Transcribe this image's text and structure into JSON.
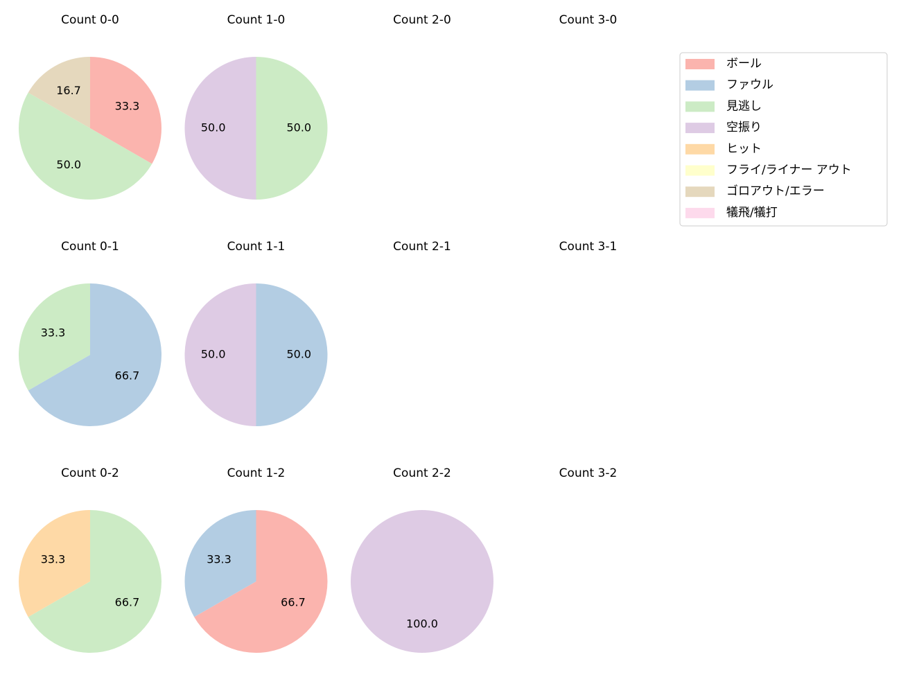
{
  "chart_data": [
    {
      "type": "pie",
      "title": "Count 0-0",
      "categories": [
        "ボール",
        "見逃し",
        "ゴロアウト/エラー"
      ],
      "values": [
        33.3,
        50,
        16.7
      ],
      "value_labels": [
        "33.3",
        "50.0",
        "16.7"
      ],
      "colors": [
        "#fbb4ae",
        "#ccebc5",
        "#e5d8bd"
      ]
    },
    {
      "type": "pie",
      "title": "Count 1-0",
      "categories": [
        "見逃し",
        "空振り"
      ],
      "values": [
        50,
        50
      ],
      "value_labels": [
        "50.0",
        "50.0"
      ],
      "colors": [
        "#ccebc5",
        "#decbe4"
      ]
    },
    {
      "type": "pie",
      "title": "Count 2-0"
    },
    {
      "type": "pie",
      "title": "Count 3-0"
    },
    {
      "type": "pie",
      "title": "Count 0-1",
      "categories": [
        "ファウル",
        "見逃し"
      ],
      "values": [
        66.7,
        33.3
      ],
      "value_labels": [
        "66.7",
        "33.3"
      ],
      "colors": [
        "#b3cde3",
        "#ccebc5"
      ]
    },
    {
      "type": "pie",
      "title": "Count 1-1",
      "categories": [
        "ファウル",
        "空振り"
      ],
      "values": [
        50,
        50
      ],
      "value_labels": [
        "50.0",
        "50.0"
      ],
      "colors": [
        "#b3cde3",
        "#decbe4"
      ]
    },
    {
      "type": "pie",
      "title": "Count 2-1"
    },
    {
      "type": "pie",
      "title": "Count 3-1"
    },
    {
      "type": "pie",
      "title": "Count 0-2",
      "categories": [
        "見逃し",
        "ヒット"
      ],
      "values": [
        66.7,
        33.3
      ],
      "value_labels": [
        "66.7",
        "33.3"
      ],
      "colors": [
        "#ccebc5",
        "#fed9a6"
      ]
    },
    {
      "type": "pie",
      "title": "Count 1-2",
      "categories": [
        "ボール",
        "ファウル"
      ],
      "values": [
        66.7,
        33.3
      ],
      "value_labels": [
        "66.7",
        "33.3"
      ],
      "colors": [
        "#fbb4ae",
        "#b3cde3"
      ]
    },
    {
      "type": "pie",
      "title": "Count 2-2",
      "categories": [
        "空振り"
      ],
      "values": [
        100
      ],
      "value_labels": [
        "100.0"
      ],
      "colors": [
        "#decbe4"
      ]
    },
    {
      "type": "pie",
      "title": "Count 3-2"
    }
  ],
  "legend": {
    "labels": [
      "ボール",
      "ファウル",
      "見逃し",
      "空振り",
      "ヒット",
      "フライ/ライナー アウト",
      "ゴロアウト/エラー",
      "犠飛/犠打"
    ],
    "colors": [
      "#fbb4ae",
      "#b3cde3",
      "#ccebc5",
      "#decbe4",
      "#fed9a6",
      "#ffffcc",
      "#e5d8bd",
      "#fddaec"
    ],
    "position": "upper right"
  }
}
